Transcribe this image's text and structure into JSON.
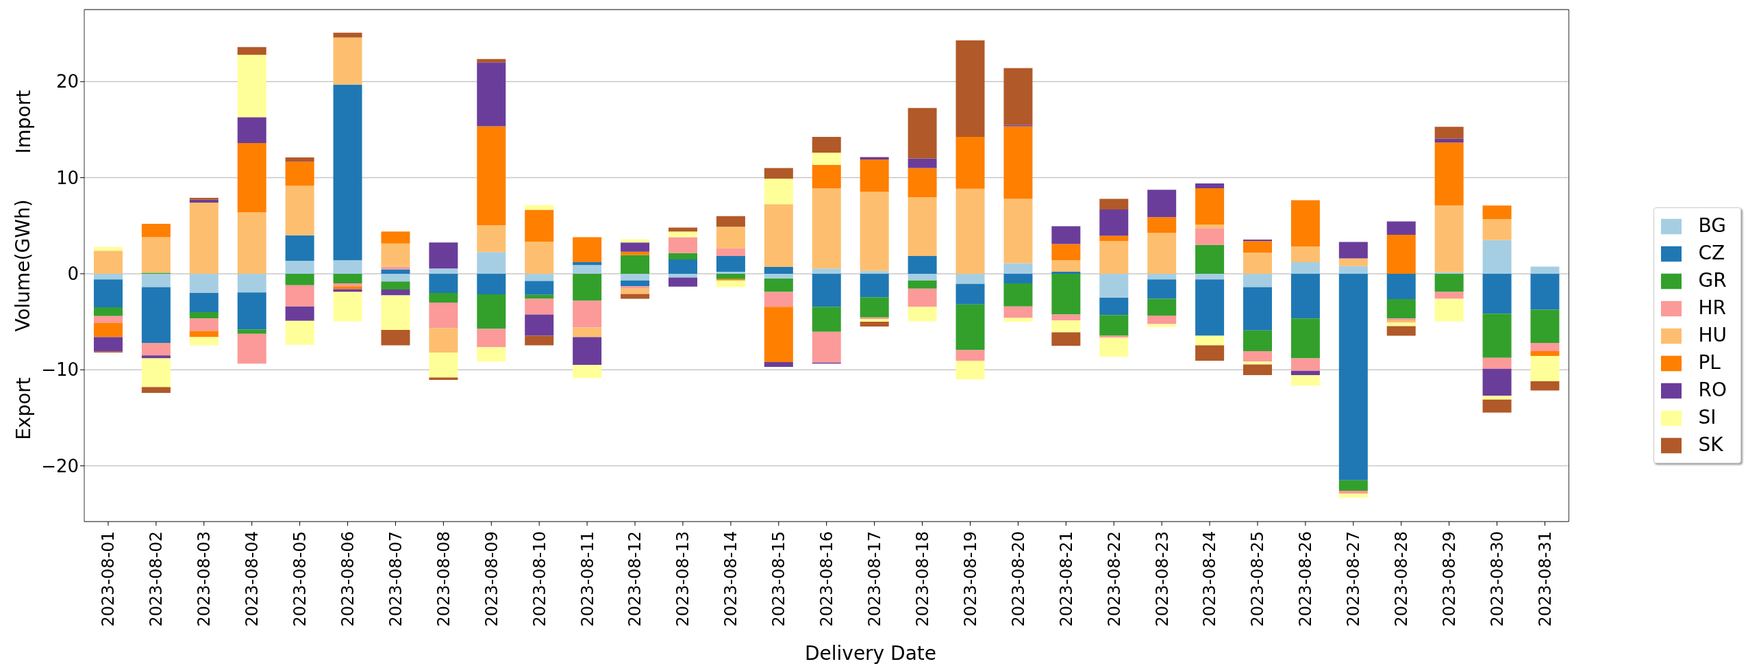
{
  "chart_data": {
    "type": "bar",
    "stacked": true,
    "xlabel": "Delivery Date",
    "ylabel": "Volume(GWh)",
    "annotations": [
      "Import",
      "Export"
    ],
    "categories": [
      "2023-08-01",
      "2023-08-02",
      "2023-08-03",
      "2023-08-04",
      "2023-08-05",
      "2023-08-06",
      "2023-08-07",
      "2023-08-08",
      "2023-08-09",
      "2023-08-10",
      "2023-08-11",
      "2023-08-12",
      "2023-08-13",
      "2023-08-14",
      "2023-08-15",
      "2023-08-16",
      "2023-08-17",
      "2023-08-18",
      "2023-08-19",
      "2023-08-20",
      "2023-08-21",
      "2023-08-22",
      "2023-08-23",
      "2023-08-24",
      "2023-08-25",
      "2023-08-26",
      "2023-08-27",
      "2023-08-28",
      "2023-08-29",
      "2023-08-30",
      "2023-08-31"
    ],
    "series": [
      {
        "name": "BG",
        "color": "#a6cee3",
        "values": [
          -0.6,
          -1.4,
          -2.0,
          -1.95,
          1.35,
          1.4,
          -0.8,
          0.55,
          2.25,
          -0.75,
          0.9,
          -0.7,
          -0.4,
          0.2,
          -0.5,
          0.55,
          0.3,
          -0.7,
          -1.05,
          1.1,
          null,
          -2.5,
          -0.6,
          -0.6,
          -1.4,
          1.2,
          0.8,
          null,
          0.15,
          3.5,
          0.75
        ]
      },
      {
        "name": "CZ",
        "color": "#1f78b4",
        "values": [
          -2.9,
          -5.8,
          -2.0,
          -3.85,
          2.65,
          18.3,
          0.45,
          -2.0,
          -2.15,
          -1.45,
          0.3,
          -0.6,
          1.5,
          1.65,
          0.7,
          -3.45,
          -2.45,
          1.85,
          -2.15,
          -1.0,
          0.2,
          -1.8,
          -2.0,
          -5.85,
          -4.5,
          -4.65,
          -21.5,
          -2.65,
          null,
          -4.15,
          -3.75
        ]
      },
      {
        "name": "GR",
        "color": "#33a02c",
        "values": [
          -0.9,
          0.1,
          -0.65,
          -0.45,
          -1.2,
          -1.0,
          -0.85,
          -1.0,
          -3.6,
          -0.4,
          -2.8,
          1.95,
          0.65,
          -0.55,
          -1.4,
          -2.6,
          -2.1,
          -0.85,
          -4.75,
          -2.4,
          -4.25,
          -2.15,
          -1.75,
          3.0,
          -2.15,
          -4.15,
          -1.1,
          -2.0,
          -1.9,
          -4.6,
          -3.45
        ]
      },
      {
        "name": "HR",
        "color": "#fb9a99",
        "values": [
          -0.7,
          -1.3,
          -1.3,
          -3.1,
          -2.2,
          -0.3,
          0.3,
          -2.65,
          -1.9,
          -1.65,
          -2.8,
          -0.25,
          1.65,
          0.8,
          -1.55,
          -3.2,
          -0.15,
          -1.9,
          -1.1,
          -1.2,
          -0.6,
          -0.2,
          -0.9,
          1.75,
          -1.1,
          -1.3,
          -0.3,
          -0.2,
          -0.7,
          -1.15,
          -0.85
        ]
      },
      {
        "name": "HU",
        "color": "#fdbf6f",
        "values": [
          2.4,
          3.7,
          7.4,
          6.4,
          5.15,
          4.9,
          2.4,
          -2.55,
          2.8,
          3.35,
          -1.0,
          -0.55,
          null,
          2.25,
          6.55,
          8.35,
          8.25,
          6.1,
          8.85,
          6.7,
          1.2,
          3.4,
          4.25,
          0.35,
          2.2,
          1.65,
          0.8,
          -0.25,
          6.95,
          2.2,
          null
        ]
      },
      {
        "name": "PL",
        "color": "#ff7f00",
        "values": [
          -1.5,
          1.4,
          -0.65,
          7.2,
          2.5,
          -0.3,
          1.25,
          null,
          10.3,
          3.3,
          2.6,
          0.35,
          null,
          -0.15,
          -5.75,
          2.45,
          3.35,
          3.05,
          5.4,
          7.55,
          1.7,
          0.55,
          1.65,
          3.8,
          1.2,
          4.8,
          null,
          4.05,
          6.55,
          1.4,
          -0.5
        ]
      },
      {
        "name": "RO",
        "color": "#6a3d9a",
        "values": [
          -1.5,
          -0.3,
          0.3,
          2.7,
          -1.5,
          -0.3,
          -0.6,
          2.7,
          6.65,
          -2.2,
          -2.9,
          0.95,
          -0.95,
          null,
          -0.5,
          -0.1,
          0.25,
          1.0,
          null,
          0.15,
          1.85,
          2.75,
          2.85,
          0.5,
          0.15,
          -0.45,
          1.7,
          1.4,
          0.4,
          -2.8,
          null
        ]
      },
      {
        "name": "SI",
        "color": "#ffff99",
        "values": [
          0.4,
          -3.0,
          -0.85,
          6.5,
          -2.5,
          -3.05,
          -3.6,
          -2.6,
          -1.5,
          0.5,
          -1.35,
          0.35,
          0.6,
          -0.7,
          2.65,
          1.25,
          -0.3,
          -1.5,
          -1.95,
          -0.4,
          -1.25,
          -2.0,
          -0.3,
          -1.0,
          -0.3,
          -1.1,
          -0.4,
          -0.35,
          -2.35,
          -0.4,
          -2.65
        ]
      },
      {
        "name": "SK",
        "color": "#b15928",
        "values": [
          -0.1,
          -0.6,
          0.2,
          0.8,
          0.45,
          0.5,
          -1.6,
          -0.25,
          0.35,
          -1.0,
          null,
          -0.5,
          0.4,
          1.1,
          1.1,
          1.65,
          -0.5,
          5.25,
          10.05,
          5.9,
          -1.4,
          1.1,
          null,
          -1.6,
          -1.1,
          null,
          null,
          -1.0,
          1.25,
          -1.35,
          -0.95
        ]
      }
    ],
    "ylim": [
      -25.8,
      27.5
    ],
    "yticks": [
      {
        "value": -20,
        "label": "−20"
      },
      {
        "value": -10,
        "label": "−10"
      },
      0,
      10,
      20
    ],
    "grid": "y",
    "legend": "right"
  }
}
